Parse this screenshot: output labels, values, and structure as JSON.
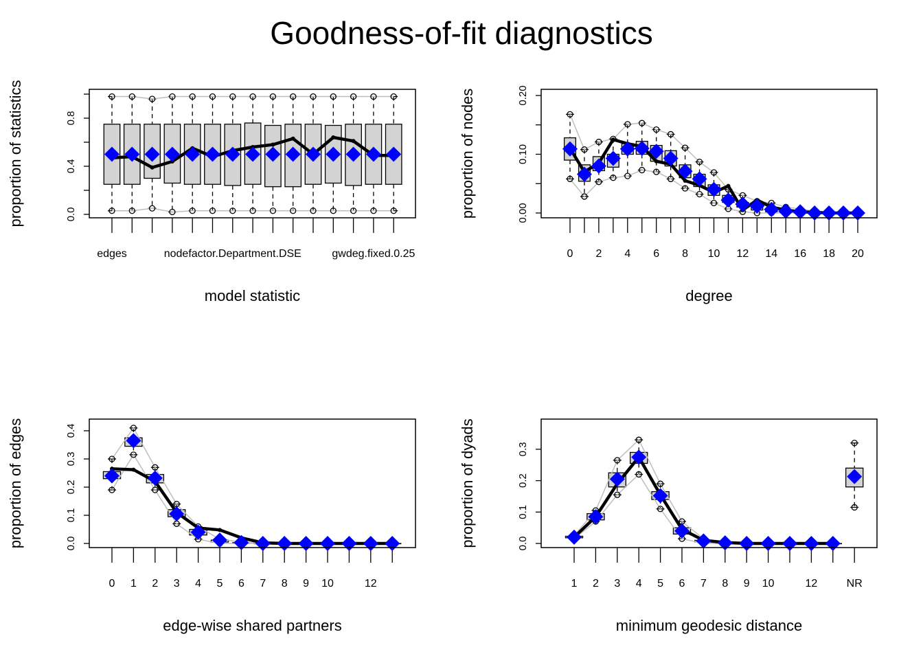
{
  "title": "Goodness-of-fit diagnostics",
  "colors": {
    "observed": "#0000ff",
    "mean": "#000000",
    "bounds": "#bebebe",
    "box": "#d3d3d3"
  },
  "chart_data": [
    {
      "type": "box",
      "xlabel": "model statistic",
      "ylabel": "proportion of statistics",
      "ylim": [
        0,
        1
      ],
      "yticks": [
        0,
        0.2,
        0.4,
        0.6,
        0.8,
        1.0
      ],
      "yticklabels": [
        "0.0",
        "",
        "0.4",
        "",
        "0.8",
        ""
      ],
      "categories": [
        "edges",
        "",
        "",
        "",
        "",
        "",
        "nodefactor.Department.DSE",
        "",
        "",
        "",
        "",
        "",
        "",
        "gwdeg.fixed.0.25",
        ""
      ],
      "observed": [
        0.5,
        0.5,
        0.5,
        0.5,
        0.5,
        0.5,
        0.5,
        0.5,
        0.5,
        0.5,
        0.5,
        0.5,
        0.5,
        0.5,
        0.5
      ],
      "mean": [
        0.47,
        0.48,
        0.39,
        0.44,
        0.55,
        0.48,
        0.53,
        0.56,
        0.58,
        0.63,
        0.5,
        0.64,
        0.61,
        0.49,
        0.49
      ],
      "upper": [
        0.98,
        0.98,
        0.96,
        0.98,
        0.98,
        0.98,
        0.98,
        0.98,
        0.98,
        0.98,
        0.98,
        0.98,
        0.98,
        0.98,
        0.98
      ],
      "lower": [
        0.03,
        0.03,
        0.05,
        0.02,
        0.03,
        0.03,
        0.03,
        0.03,
        0.03,
        0.03,
        0.03,
        0.03,
        0.03,
        0.03,
        0.03
      ],
      "q1": [
        0.25,
        0.25,
        0.3,
        0.26,
        0.25,
        0.25,
        0.24,
        0.25,
        0.23,
        0.23,
        0.25,
        0.26,
        0.24,
        0.25,
        0.25
      ],
      "q3": [
        0.75,
        0.75,
        0.75,
        0.75,
        0.75,
        0.75,
        0.75,
        0.76,
        0.74,
        0.75,
        0.75,
        0.74,
        0.75,
        0.75,
        0.75
      ]
    },
    {
      "type": "box",
      "xlabel": "degree",
      "ylabel": "proportion of nodes",
      "ylim": [
        0,
        0.2
      ],
      "yticks": [
        0,
        0.05,
        0.1,
        0.15,
        0.2
      ],
      "yticklabels": [
        "0.00",
        "",
        "0.10",
        "",
        "0.20"
      ],
      "categories": [
        "0",
        "",
        "2",
        "",
        "4",
        "",
        "6",
        "",
        "8",
        "",
        "10",
        "",
        "12",
        "",
        "14",
        "",
        "16",
        "",
        "18",
        "",
        "20"
      ],
      "observed": [
        0.109,
        0.066,
        0.08,
        0.093,
        0.109,
        0.11,
        0.105,
        0.093,
        0.071,
        0.058,
        0.04,
        0.022,
        0.015,
        0.012,
        0.006,
        0.003,
        0.002,
        0,
        0,
        0,
        0
      ],
      "mean": [
        0.11,
        0.07,
        0.085,
        0.125,
        0.118,
        0.113,
        0.088,
        0.083,
        0.055,
        0.047,
        0.035,
        0.046,
        0.005,
        0.022,
        0.01,
        0.005,
        0.002,
        0.001,
        0,
        0,
        0
      ],
      "upper": [
        0.168,
        0.108,
        0.121,
        0.126,
        0.151,
        0.153,
        0.142,
        0.134,
        0.111,
        0.087,
        0.069,
        0.04,
        0.03,
        0.02,
        0.017,
        0.01,
        0.007,
        0.003,
        0.001,
        0,
        0
      ],
      "lower": [
        0.058,
        0.028,
        0.053,
        0.06,
        0.063,
        0.073,
        0.07,
        0.058,
        0.042,
        0.032,
        0.017,
        0.007,
        0.002,
        0,
        0,
        0,
        0,
        0,
        0,
        0,
        0
      ],
      "q1": [
        0.09,
        0.054,
        0.072,
        0.078,
        0.1,
        0.1,
        0.088,
        0.08,
        0.06,
        0.045,
        0.03,
        0.018,
        0.01,
        0.005,
        0.002,
        0.001,
        0,
        0,
        0,
        0,
        0
      ],
      "q3": [
        0.128,
        0.082,
        0.096,
        0.1,
        0.118,
        0.122,
        0.115,
        0.106,
        0.082,
        0.066,
        0.048,
        0.03,
        0.018,
        0.012,
        0.008,
        0.004,
        0.002,
        0,
        0,
        0,
        0
      ]
    },
    {
      "type": "box",
      "xlabel": "edge-wise shared partners",
      "ylabel": "proportion of edges",
      "ylim": [
        0,
        0.4
      ],
      "yticks": [
        0,
        0.1,
        0.2,
        0.3,
        0.4
      ],
      "yticklabels": [
        "0.0",
        "0.1",
        "0.2",
        "0.3",
        "0.4"
      ],
      "categories": [
        "0",
        "1",
        "2",
        "3",
        "4",
        "5",
        "6",
        "7",
        "8",
        "9",
        "10",
        "",
        "12",
        ""
      ],
      "observed": [
        0.24,
        0.365,
        0.232,
        0.105,
        0.04,
        0.012,
        0.003,
        0,
        0,
        0,
        0,
        0,
        0,
        0
      ],
      "mean": [
        0.265,
        0.262,
        0.22,
        0.11,
        0.055,
        0.048,
        0.02,
        0.002,
        0,
        0,
        0,
        0,
        0,
        0
      ],
      "upper": [
        0.3,
        0.41,
        0.27,
        0.14,
        0.06,
        0.015,
        0.005,
        0,
        0,
        0,
        0,
        0,
        0,
        0
      ],
      "lower": [
        0.19,
        0.315,
        0.19,
        0.07,
        0.015,
        0,
        0,
        0,
        0,
        0,
        0,
        0,
        0,
        0
      ],
      "q1": [
        0.23,
        0.345,
        0.215,
        0.095,
        0.03,
        0.005,
        0,
        0,
        0,
        0,
        0,
        0,
        0,
        0
      ],
      "q3": [
        0.255,
        0.375,
        0.245,
        0.12,
        0.05,
        0.012,
        0.003,
        0,
        0,
        0,
        0,
        0,
        0,
        0
      ]
    },
    {
      "type": "box",
      "xlabel": "minimum geodesic distance",
      "ylabel": "proportion of dyads",
      "ylim": [
        0,
        0.3
      ],
      "yticks": [
        0,
        0.1,
        0.2,
        0.3
      ],
      "yticklabels": [
        "0.0",
        "0.1",
        "0.2",
        "0.3"
      ],
      "categories": [
        "1",
        "2",
        "3",
        "4",
        "5",
        "6",
        "7",
        "8",
        "9",
        "10",
        "",
        "12",
        "",
        "NR"
      ],
      "observed": [
        0.02,
        0.085,
        0.205,
        0.275,
        0.152,
        0.04,
        0.008,
        0.002,
        0,
        0,
        0,
        0,
        0,
        0.213
      ],
      "mean": [
        0.02,
        0.085,
        0.19,
        0.275,
        0.155,
        0.045,
        0.01,
        0.003,
        0,
        0,
        0,
        0,
        0,
        null
      ],
      "upper": [
        0.025,
        0.105,
        0.265,
        0.33,
        0.19,
        0.07,
        0.015,
        0.003,
        0,
        0,
        0,
        0,
        0,
        0.32
      ],
      "lower": [
        0.015,
        0.07,
        0.155,
        0.22,
        0.11,
        0.015,
        0,
        0,
        0,
        0,
        0,
        0,
        0,
        0.115
      ],
      "q1": [
        0.018,
        0.075,
        0.18,
        0.255,
        0.14,
        0.03,
        0.005,
        0,
        0,
        0,
        0,
        0,
        0,
        0.18
      ],
      "q3": [
        0.023,
        0.095,
        0.225,
        0.29,
        0.165,
        0.05,
        0.01,
        0.002,
        0,
        0,
        0,
        0,
        0,
        0.24
      ]
    }
  ]
}
